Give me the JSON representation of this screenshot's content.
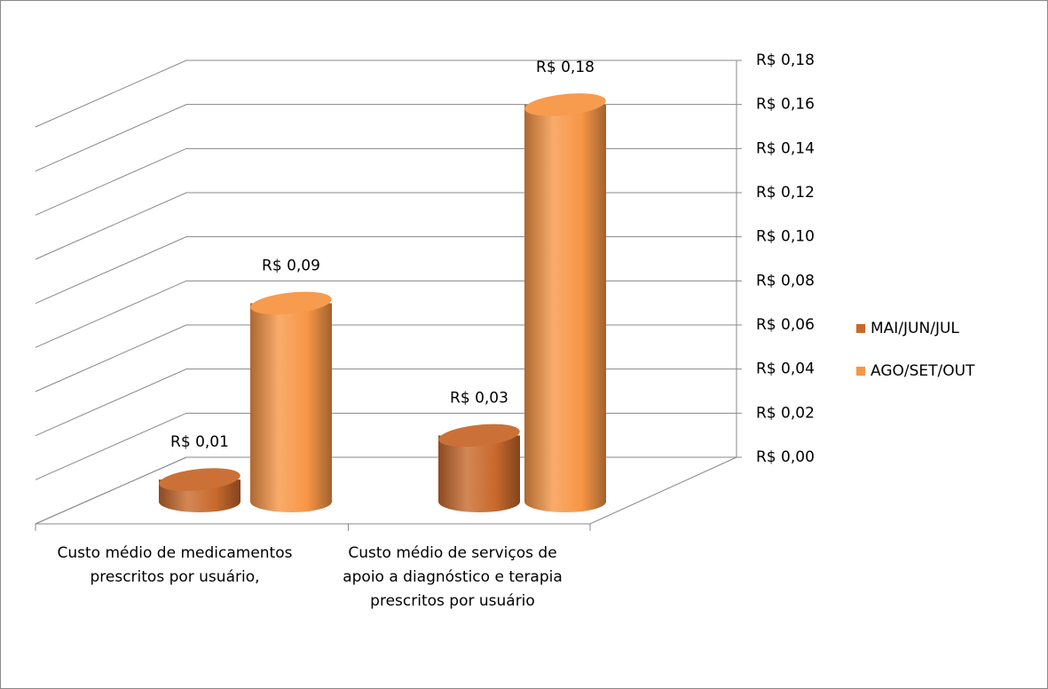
{
  "chart_data": {
    "type": "bar3d",
    "categories": [
      "Custo médio de medicamentos prescritos por usuário,",
      "Custo médio de serviços de apoio a diagnóstico e terapia prescritos por usuário"
    ],
    "series": [
      {
        "name": "MAI/JUN/JUL",
        "color": "#c8692c",
        "values": [
          0.01,
          0.03
        ],
        "value_labels": [
          "R$ 0,01",
          "R$ 0,03"
        ]
      },
      {
        "name": "AGO/SET/OUT",
        "color": "#f79646",
        "values": [
          0.09,
          0.18
        ],
        "value_labels": [
          "R$ 0,09",
          "R$ 0,18"
        ]
      }
    ],
    "ylim": [
      0,
      0.18
    ],
    "yticks": [
      {
        "value": 0,
        "label": "R$ 0,00"
      },
      {
        "value": 0.02,
        "label": "R$ 0,02"
      },
      {
        "value": 0.04,
        "label": "R$ 0,04"
      },
      {
        "value": 0.06,
        "label": "R$ 0,06"
      },
      {
        "value": 0.08,
        "label": "R$ 0,08"
      },
      {
        "value": 0.1,
        "label": "R$ 0,10"
      },
      {
        "value": 0.12,
        "label": "R$ 0,12"
      },
      {
        "value": 0.14,
        "label": "R$ 0,14"
      },
      {
        "value": 0.16,
        "label": "R$ 0,16"
      },
      {
        "value": 0.18,
        "label": "R$ 0,18"
      }
    ],
    "grid": true,
    "legend": "right"
  }
}
